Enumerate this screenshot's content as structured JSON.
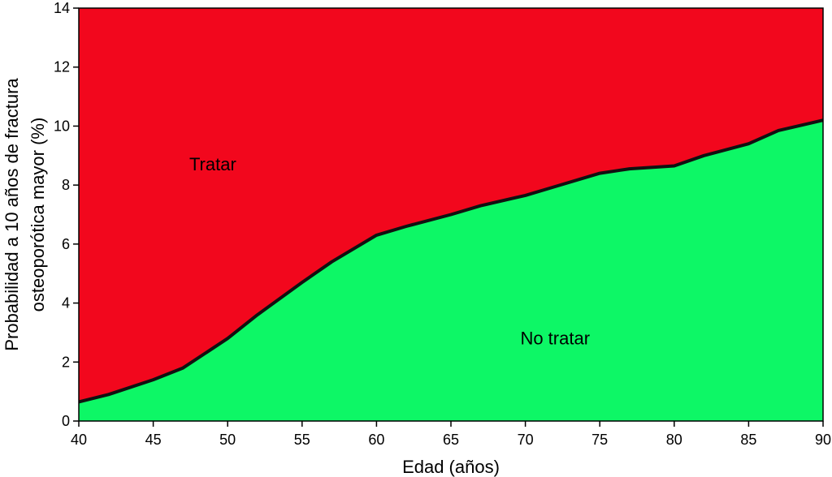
{
  "chart_data": {
    "type": "area",
    "x": [
      40,
      42,
      45,
      47,
      50,
      52,
      55,
      57,
      60,
      62,
      65,
      67,
      70,
      72,
      75,
      77,
      80,
      82,
      85,
      87,
      90
    ],
    "threshold": [
      0.65,
      0.9,
      1.4,
      1.8,
      2.8,
      3.6,
      4.7,
      5.4,
      6.3,
      6.6,
      7.0,
      7.3,
      7.65,
      7.95,
      8.4,
      8.55,
      8.65,
      9.0,
      9.4,
      9.85,
      10.2
    ],
    "xlabel": "Edad (años)",
    "ylabel": [
      "Probabilidad a 10 años de fractura",
      "osteoporótica mayor (%)"
    ],
    "xlim": [
      40,
      90
    ],
    "ylim": [
      0,
      14
    ],
    "xticks": [
      40,
      45,
      50,
      55,
      60,
      65,
      70,
      75,
      80,
      85,
      90
    ],
    "yticks": [
      0,
      2,
      4,
      6,
      8,
      10,
      12,
      14
    ],
    "grid": false,
    "regions": {
      "above": {
        "label": "Tratar",
        "label_x": 49,
        "label_y": 8.5,
        "color": "#f2071d"
      },
      "below": {
        "label": "No tratar",
        "label_x": 72,
        "label_y": 2.6,
        "color": "#0df766"
      }
    },
    "line_color": "#111111"
  }
}
